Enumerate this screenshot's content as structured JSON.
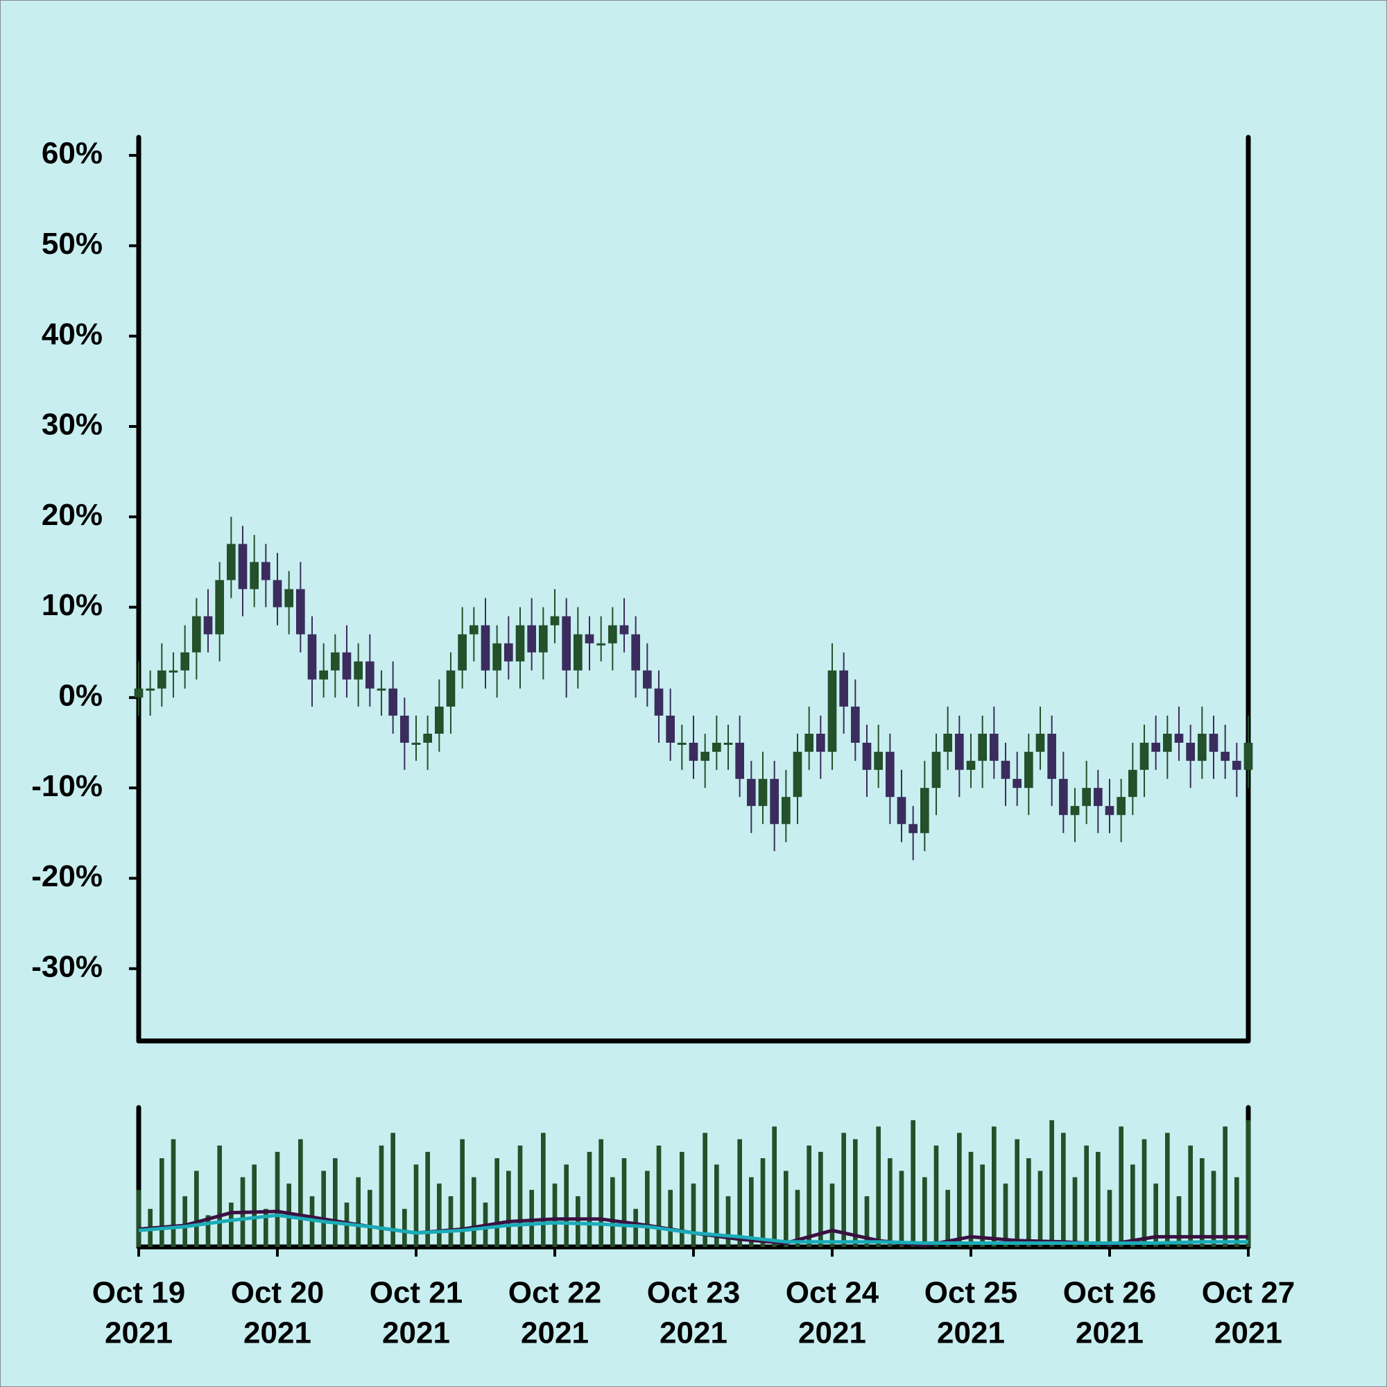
{
  "chart_data": {
    "type": "candlestick",
    "x": [
      0,
      2,
      4,
      6,
      8,
      10,
      12,
      14,
      16,
      18,
      20,
      22,
      24,
      26,
      28,
      30,
      32,
      34,
      36,
      38,
      40,
      42,
      44,
      46,
      48,
      50,
      52,
      54,
      56,
      58,
      60,
      62,
      64,
      66,
      68,
      70,
      72,
      74,
      76,
      78,
      80,
      82,
      84,
      86,
      88,
      90,
      92,
      94,
      96,
      98,
      100,
      102,
      104,
      106,
      108,
      110,
      112,
      114,
      116,
      118,
      120,
      122,
      124,
      126,
      128,
      130,
      132,
      134,
      136,
      138,
      140,
      142,
      144,
      146,
      148,
      150,
      152,
      154,
      156,
      158,
      160,
      162,
      164,
      166,
      168,
      170,
      172,
      174,
      176,
      178,
      180,
      182,
      184,
      186,
      188,
      190,
      192
    ],
    "open": [
      0,
      1,
      1,
      3,
      3,
      5,
      9,
      7,
      13,
      17,
      12,
      15,
      13,
      10,
      12,
      7,
      2,
      3,
      5,
      2,
      4,
      1,
      1,
      -2,
      -5,
      -5,
      -4,
      -1,
      3,
      7,
      8,
      3,
      6,
      4,
      8,
      5,
      8,
      9,
      3,
      7,
      6,
      6,
      8,
      7,
      3,
      1,
      -2,
      -5,
      -5,
      -7,
      -6,
      -5,
      -5,
      -9,
      -12,
      -9,
      -14,
      -11,
      -6,
      -4,
      -6,
      3,
      -1,
      -5,
      -8,
      -6,
      -11,
      -14,
      -15,
      -10,
      -6,
      -4,
      -8,
      -7,
      -4,
      -7,
      -9,
      -10,
      -6,
      -4,
      -9,
      -13,
      -12,
      -10,
      -12,
      -13,
      -11,
      -8,
      -5,
      -6,
      -4,
      -5,
      -7,
      -4,
      -6,
      -7,
      -8
    ],
    "high": [
      4,
      3,
      6,
      5,
      8,
      11,
      12,
      15,
      20,
      19,
      18,
      17,
      16,
      14,
      15,
      9,
      6,
      7,
      8,
      6,
      7,
      3,
      4,
      0,
      -2,
      -2,
      2,
      5,
      10,
      10,
      11,
      8,
      9,
      10,
      11,
      10,
      12,
      11,
      10,
      9,
      9,
      10,
      11,
      9,
      6,
      3,
      1,
      -3,
      -2,
      -4,
      -2,
      -3,
      -2,
      -7,
      -6,
      -7,
      -8,
      -4,
      -1,
      -2,
      6,
      5,
      2,
      -3,
      -3,
      -4,
      -8,
      -12,
      -7,
      -4,
      -1,
      -2,
      -4,
      -2,
      -1,
      -5,
      -6,
      -4,
      -1,
      -2,
      -6,
      -10,
      -7,
      -8,
      -9,
      -9,
      -5,
      -3,
      -2,
      -2,
      -1,
      -3,
      -1,
      -2,
      -3,
      -5,
      -2
    ],
    "low": [
      -2,
      -2,
      -1,
      0,
      1,
      2,
      5,
      4,
      11,
      9,
      10,
      10,
      8,
      7,
      5,
      -1,
      0,
      0,
      0,
      -1,
      -1,
      -2,
      -4,
      -8,
      -7,
      -8,
      -6,
      -4,
      1,
      4,
      1,
      0,
      2,
      1,
      3,
      2,
      6,
      0,
      1,
      3,
      4,
      3,
      5,
      0,
      -1,
      -5,
      -7,
      -8,
      -9,
      -10,
      -8,
      -8,
      -11,
      -15,
      -14,
      -17,
      -16,
      -14,
      -8,
      -9,
      -8,
      -4,
      -7,
      -11,
      -10,
      -14,
      -16,
      -18,
      -17,
      -13,
      -8,
      -11,
      -10,
      -10,
      -9,
      -12,
      -12,
      -13,
      -8,
      -12,
      -15,
      -16,
      -14,
      -15,
      -15,
      -16,
      -13,
      -11,
      -8,
      -9,
      -7,
      -10,
      -9,
      -9,
      -9,
      -11,
      -10
    ],
    "close": [
      1,
      1,
      3,
      3,
      5,
      9,
      7,
      13,
      17,
      12,
      15,
      13,
      10,
      12,
      7,
      2,
      3,
      5,
      2,
      4,
      1,
      1,
      -2,
      -5,
      -5,
      -4,
      -1,
      3,
      7,
      8,
      3,
      6,
      4,
      8,
      5,
      8,
      9,
      3,
      7,
      6,
      6,
      8,
      7,
      3,
      1,
      -2,
      -5,
      -5,
      -7,
      -6,
      -5,
      -5,
      -9,
      -12,
      -9,
      -14,
      -11,
      -6,
      -4,
      -6,
      3,
      -1,
      -5,
      -8,
      -6,
      -11,
      -14,
      -15,
      -10,
      -6,
      -4,
      -8,
      -7,
      -4,
      -7,
      -9,
      -10,
      -6,
      -4,
      -9,
      -13,
      -12,
      -10,
      -12,
      -13,
      -11,
      -8,
      -5,
      -6,
      -4,
      -5,
      -7,
      -4,
      -6,
      -7,
      -8,
      -5
    ],
    "up_color": "#24502a",
    "down_color": "#3b2c5e",
    "xlim": [
      0,
      192
    ],
    "xticks": [
      {
        "value": 0,
        "label": [
          "Oct 19",
          "2021"
        ]
      },
      {
        "value": 24,
        "label": [
          "Oct 20",
          "2021"
        ]
      },
      {
        "value": 48,
        "label": [
          "Oct 21",
          "2021"
        ]
      },
      {
        "value": 72,
        "label": [
          "Oct 22",
          "2021"
        ]
      },
      {
        "value": 96,
        "label": [
          "Oct 23",
          "2021"
        ]
      },
      {
        "value": 120,
        "label": [
          "Oct 24",
          "2021"
        ]
      },
      {
        "value": 144,
        "label": [
          "Oct 25",
          "2021"
        ]
      },
      {
        "value": 168,
        "label": [
          "Oct 26",
          "2021"
        ]
      },
      {
        "value": 192,
        "label": [
          "Oct 27",
          "2021"
        ]
      }
    ],
    "ylim": [
      -38,
      62
    ],
    "yticks": [
      {
        "value": -30,
        "label": "-30%"
      },
      {
        "value": -20,
        "label": "-20%"
      },
      {
        "value": -10,
        "label": "-10%"
      },
      {
        "value": 0,
        "label": "0%"
      },
      {
        "value": 10,
        "label": "10%"
      },
      {
        "value": 20,
        "label": "20%"
      },
      {
        "value": 30,
        "label": "30%"
      },
      {
        "value": 40,
        "label": "40%"
      },
      {
        "value": 50,
        "label": "50%"
      },
      {
        "value": 60,
        "label": "60%"
      }
    ],
    "volume": {
      "color": "#24502a",
      "ylim": [
        0,
        110
      ],
      "values": [
        45,
        30,
        70,
        85,
        40,
        60,
        25,
        80,
        35,
        55,
        65,
        30,
        75,
        50,
        85,
        40,
        60,
        70,
        35,
        55,
        45,
        80,
        90,
        30,
        65,
        75,
        50,
        40,
        85,
        55,
        35,
        70,
        60,
        80,
        45,
        90,
        50,
        65,
        40,
        75,
        85,
        55,
        70,
        30,
        60,
        80,
        45,
        75,
        50,
        90,
        65,
        40,
        85,
        55,
        70,
        95,
        60,
        45,
        80,
        75,
        50,
        90,
        85,
        40,
        95,
        70,
        60,
        100,
        55,
        80,
        45,
        90,
        75,
        65,
        95,
        50,
        85,
        70,
        60,
        100,
        90,
        55,
        80,
        75,
        45,
        95,
        65,
        85,
        50,
        90,
        40,
        80,
        70,
        60,
        95,
        55,
        100
      ]
    },
    "lines": [
      {
        "color": "#3a1040",
        "x": [
          0,
          8,
          16,
          24,
          32,
          40,
          48,
          56,
          64,
          72,
          80,
          88,
          96,
          104,
          112,
          120,
          128,
          136,
          144,
          152,
          160,
          168,
          176,
          184,
          192
        ],
        "values": [
          14,
          17,
          27,
          28,
          22,
          16,
          11,
          14,
          20,
          22,
          22,
          17,
          11,
          6,
          3,
          13,
          5,
          1,
          8,
          5,
          4,
          2,
          8,
          8,
          8
        ]
      },
      {
        "color": "#1aacb8",
        "x": [
          0,
          8,
          16,
          24,
          32,
          40,
          48,
          56,
          64,
          72,
          80,
          88,
          96,
          104,
          112,
          120,
          128,
          136,
          144,
          152,
          160,
          168,
          176,
          184,
          192
        ],
        "values": [
          13,
          16,
          21,
          25,
          20,
          16,
          11,
          13,
          17,
          19,
          18,
          16,
          11,
          8,
          4,
          4,
          4,
          3,
          3,
          3,
          3,
          3,
          3,
          4,
          4
        ]
      }
    ]
  }
}
